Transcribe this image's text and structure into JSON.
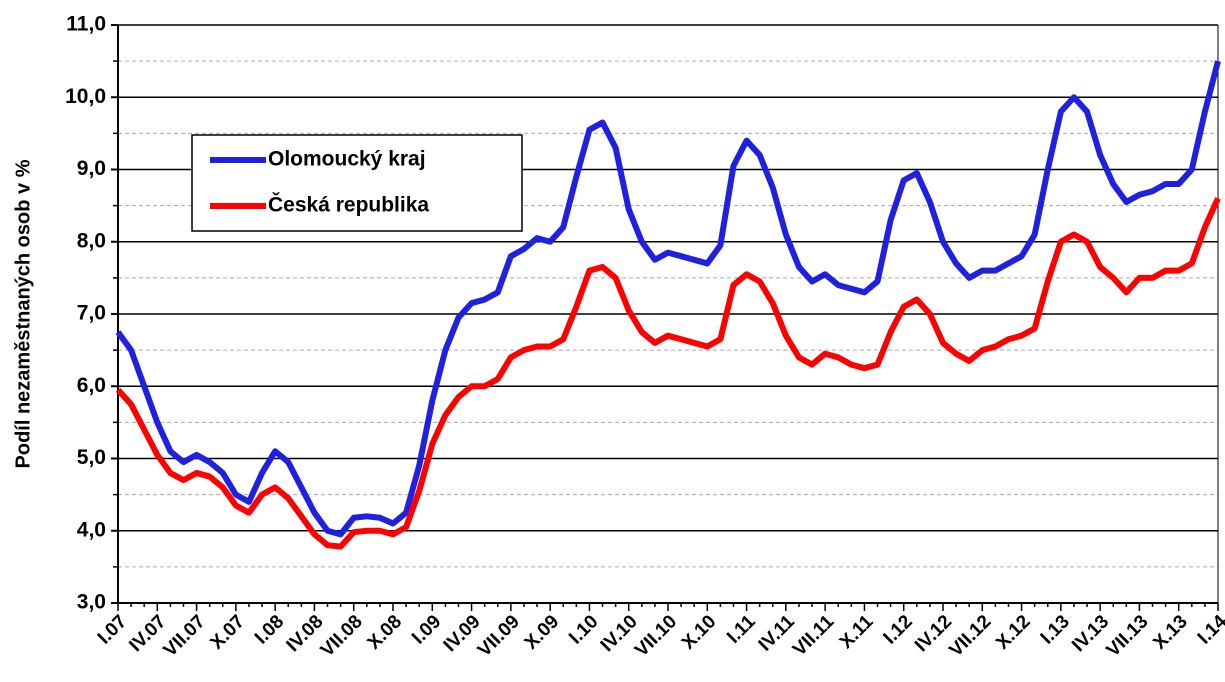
{
  "chart_data": {
    "type": "line",
    "y_label": "Podíl nezaměstnaných osob v %",
    "categories": [
      "I.07",
      null,
      null,
      "IV.07",
      null,
      null,
      "VII.07",
      null,
      null,
      "X.07",
      null,
      null,
      "I.08",
      null,
      null,
      "IV.08",
      null,
      null,
      "VII.08",
      null,
      null,
      "X.08",
      null,
      null,
      "I.09",
      null,
      null,
      "IV.09",
      null,
      null,
      "VII.09",
      null,
      null,
      "X.09",
      null,
      null,
      "I.10",
      null,
      null,
      "IV.10",
      null,
      null,
      "VII.10",
      null,
      null,
      "X.10",
      null,
      null,
      "I.11",
      null,
      null,
      "IV.11",
      null,
      null,
      "VII.11",
      null,
      null,
      "X.11",
      null,
      null,
      "I.12",
      null,
      null,
      "IV.12",
      null,
      null,
      "VII.12",
      null,
      null,
      "X.12",
      null,
      null,
      "I.13",
      null,
      null,
      "IV.13",
      null,
      null,
      "VII.13",
      null,
      null,
      "X.13",
      null,
      null,
      "I.14"
    ],
    "series": [
      {
        "name": "Olomoucký kraj",
        "color": "#2020e0",
        "values": [
          6.75,
          6.5,
          6.0,
          5.5,
          5.1,
          4.95,
          5.05,
          4.95,
          4.8,
          4.5,
          4.4,
          4.8,
          5.1,
          4.95,
          4.6,
          4.25,
          4.0,
          3.95,
          4.18,
          4.2,
          4.18,
          4.1,
          4.25,
          4.9,
          5.8,
          6.5,
          6.95,
          7.15,
          7.2,
          7.3,
          7.8,
          7.9,
          8.05,
          8.0,
          8.2,
          8.9,
          9.55,
          9.65,
          9.3,
          8.45,
          8.0,
          7.75,
          7.85,
          7.8,
          7.75,
          7.7,
          7.95,
          9.05,
          9.4,
          9.2,
          8.75,
          8.1,
          7.65,
          7.45,
          7.55,
          7.4,
          7.35,
          7.3,
          7.45,
          8.3,
          8.85,
          8.95,
          8.55,
          8.0,
          7.7,
          7.5,
          7.6,
          7.6,
          7.7,
          7.8,
          8.1,
          9.0,
          9.8,
          10.0,
          9.8,
          9.2,
          8.8,
          8.55,
          8.65,
          8.7,
          8.8,
          8.8,
          9.0,
          9.8,
          10.5
        ]
      },
      {
        "name": "Česká republika",
        "color": "#ff0000",
        "values": [
          5.95,
          5.75,
          5.4,
          5.05,
          4.8,
          4.7,
          4.8,
          4.75,
          4.6,
          4.35,
          4.25,
          4.5,
          4.6,
          4.45,
          4.2,
          3.95,
          3.8,
          3.78,
          3.98,
          4.0,
          4.0,
          3.95,
          4.05,
          4.55,
          5.2,
          5.6,
          5.85,
          6.0,
          6.0,
          6.1,
          6.4,
          6.5,
          6.55,
          6.55,
          6.65,
          7.1,
          7.6,
          7.65,
          7.5,
          7.05,
          6.75,
          6.6,
          6.7,
          6.65,
          6.6,
          6.55,
          6.65,
          7.4,
          7.55,
          7.45,
          7.15,
          6.7,
          6.4,
          6.3,
          6.45,
          6.4,
          6.3,
          6.25,
          6.3,
          6.75,
          7.1,
          7.2,
          7.0,
          6.6,
          6.45,
          6.35,
          6.5,
          6.55,
          6.65,
          6.7,
          6.8,
          7.45,
          8.0,
          8.1,
          8.0,
          7.65,
          7.5,
          7.3,
          7.5,
          7.5,
          7.6,
          7.6,
          7.7,
          8.2,
          8.6
        ]
      }
    ],
    "ylim": [
      3,
      11
    ],
    "yticks": [
      {
        "value": 3,
        "label": "3,0"
      },
      {
        "value": 4,
        "label": "4,0"
      },
      {
        "value": 5,
        "label": "5,0"
      },
      {
        "value": 6,
        "label": "6,0"
      },
      {
        "value": 7,
        "label": "7,0"
      },
      {
        "value": 8,
        "label": "8,0"
      },
      {
        "value": 9,
        "label": "9,0"
      },
      {
        "value": 10,
        "label": "10,0"
      },
      {
        "value": 11,
        "label": "11,0"
      }
    ],
    "minor_yticks": [
      3.5,
      4.5,
      5.5,
      6.5,
      7.5,
      8.5,
      9.5,
      10.5
    ],
    "grid": true,
    "legend": "upper left"
  }
}
